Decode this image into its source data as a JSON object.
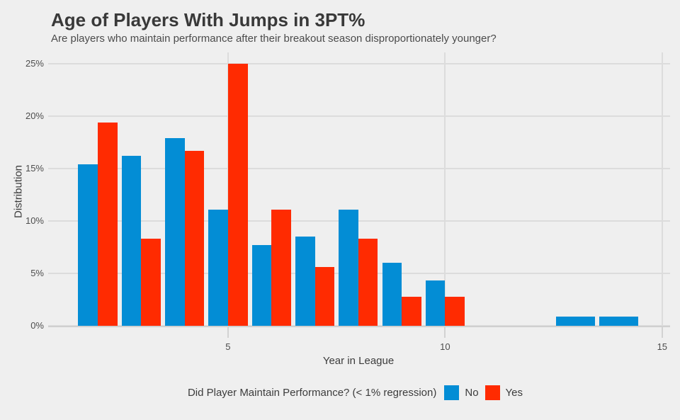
{
  "chart_data": {
    "type": "bar",
    "title": "Age of Players With Jumps in 3PT%",
    "subtitle": "Are players who maintain performance after their breakout season disproportionately younger?",
    "xlabel": "Year in League",
    "ylabel": "Distribution",
    "x": [
      2,
      3,
      4,
      5,
      6,
      7,
      8,
      9,
      10,
      13,
      14
    ],
    "series": [
      {
        "name": "No",
        "color": "#038dd5",
        "values": [
          15.4,
          16.2,
          17.9,
          11.1,
          7.7,
          8.5,
          11.1,
          6.0,
          4.3,
          0.9,
          0.9
        ]
      },
      {
        "name": "Yes",
        "color": "#ff2b01",
        "values": [
          19.4,
          8.3,
          16.7,
          25.0,
          11.1,
          5.6,
          8.3,
          2.8,
          2.8,
          null,
          null
        ]
      }
    ],
    "xlim": [
      0.857,
      15.166
    ],
    "ylim": [
      0,
      26.08
    ],
    "x_ticks": [
      5,
      10,
      15
    ],
    "x_tick_labels": [
      "5",
      "10",
      "15"
    ],
    "y_ticks": [
      0,
      5,
      10,
      15,
      20,
      25
    ],
    "y_tick_labels": [
      "0%",
      "5%",
      "10%",
      "15%",
      "20%",
      "25%"
    ],
    "grid": true,
    "legend_position": "bottom",
    "group_fraction": 0.9
  },
  "legend": {
    "title": "Did Player Maintain Performance? (< 1% regression)",
    "items": [
      {
        "label": "No",
        "color": "#038dd5"
      },
      {
        "label": "Yes",
        "color": "#ff2b01"
      }
    ]
  },
  "colors": {
    "background": "#efefef",
    "gridline": "#dcdcdc",
    "axis_line": "#d0d0d0",
    "title_text": "#393939",
    "tick_text": "#4d4d4d"
  }
}
